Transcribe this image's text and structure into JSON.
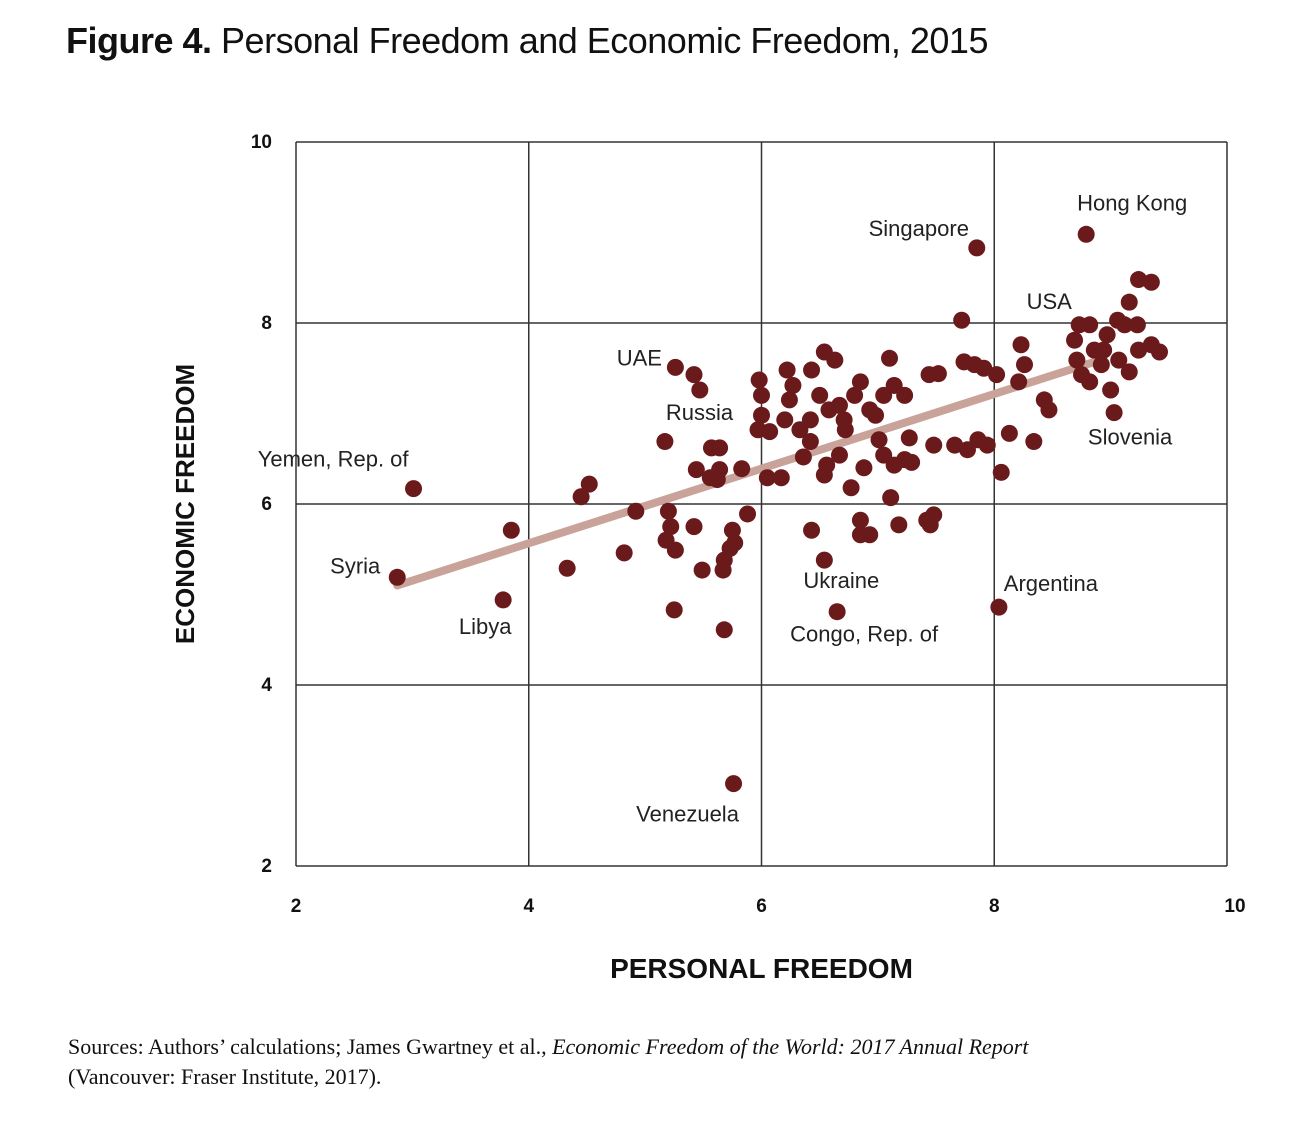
{
  "title": {
    "label": "Figure 4.",
    "text": "Personal Freedom and Economic Freedom, 2015"
  },
  "source": {
    "prefix": "Sources: Authors’ calculations; James Gwartney et al., ",
    "italic": "Economic Freedom of the World: 2017 Annual Report",
    "suffix": "(Vancouver: Fraser Institute, 2017)."
  },
  "chart_data": {
    "type": "scatter",
    "xlabel": "PERSONAL FREEDOM",
    "ylabel": "ECONOMIC FREEDOM",
    "xlim": [
      2,
      10
    ],
    "ylim": [
      2,
      10
    ],
    "xticks": [
      "2",
      "4",
      "6",
      "8",
      "10"
    ],
    "yticks": [
      "2",
      "4",
      "6",
      "8",
      "10"
    ],
    "grid": true,
    "colors": {
      "point": "#6b1a1c",
      "trend": "#c9a29a",
      "grid": "#333333"
    },
    "trendline": [
      [
        2.87,
        5.1
      ],
      [
        8.86,
        7.57
      ]
    ],
    "annotations": [
      {
        "text": "Syria",
        "x": 2.87,
        "y": 5.19
      },
      {
        "text": "Yemen, Rep. of",
        "x": 3.01,
        "y": 6.17
      },
      {
        "text": "Libya",
        "x": 3.78,
        "y": 4.94
      },
      {
        "text": "UAE",
        "x": 5.26,
        "y": 7.51
      },
      {
        "text": "Russia",
        "x": 5.57,
        "y": 6.62
      },
      {
        "text": "Venezuela",
        "x": 5.76,
        "y": 2.91
      },
      {
        "text": "Ukraine",
        "x": 6.54,
        "y": 5.38
      },
      {
        "text": "Congo, Rep. of",
        "x": 6.65,
        "y": 4.81
      },
      {
        "text": "Singapore",
        "x": 7.85,
        "y": 8.83
      },
      {
        "text": "Argentina",
        "x": 8.04,
        "y": 4.86
      },
      {
        "text": "USA",
        "x": 8.73,
        "y": 7.98
      },
      {
        "text": "Hong Kong",
        "x": 8.79,
        "y": 8.98
      },
      {
        "text": "Slovenia",
        "x": 9.03,
        "y": 7.01
      }
    ],
    "points": [
      [
        2.87,
        5.19
      ],
      [
        3.01,
        6.17
      ],
      [
        3.78,
        4.94
      ],
      [
        3.85,
        5.71
      ],
      [
        4.33,
        5.29
      ],
      [
        4.45,
        6.08
      ],
      [
        4.52,
        6.22
      ],
      [
        4.82,
        5.46
      ],
      [
        4.92,
        5.92
      ],
      [
        5.17,
        6.69
      ],
      [
        5.26,
        7.51
      ],
      [
        5.42,
        7.43
      ],
      [
        5.47,
        7.26
      ],
      [
        5.25,
        4.83
      ],
      [
        5.2,
        5.92
      ],
      [
        5.22,
        5.75
      ],
      [
        5.18,
        5.6
      ],
      [
        5.26,
        5.49
      ],
      [
        5.42,
        5.75
      ],
      [
        5.49,
        5.27
      ],
      [
        5.44,
        6.38
      ],
      [
        5.57,
        6.62
      ],
      [
        5.64,
        6.62
      ],
      [
        5.56,
        6.29
      ],
      [
        5.64,
        6.38
      ],
      [
        5.62,
        6.27
      ],
      [
        5.68,
        4.61
      ],
      [
        5.68,
        5.38
      ],
      [
        5.73,
        5.51
      ],
      [
        5.75,
        5.71
      ],
      [
        5.77,
        5.57
      ],
      [
        5.67,
        5.27
      ],
      [
        5.83,
        6.39
      ],
      [
        5.88,
        5.89
      ],
      [
        5.76,
        2.91
      ],
      [
        5.98,
        7.37
      ],
      [
        6.0,
        7.2
      ],
      [
        6.0,
        6.98
      ],
      [
        5.97,
        6.82
      ],
      [
        6.07,
        6.8
      ],
      [
        6.05,
        6.29
      ],
      [
        6.17,
        6.29
      ],
      [
        6.2,
        6.93
      ],
      [
        6.24,
        7.15
      ],
      [
        6.22,
        7.48
      ],
      [
        6.27,
        7.31
      ],
      [
        6.33,
        6.82
      ],
      [
        6.42,
        6.93
      ],
      [
        6.42,
        6.69
      ],
      [
        6.36,
        6.52
      ],
      [
        6.43,
        7.48
      ],
      [
        6.54,
        7.68
      ],
      [
        6.63,
        7.59
      ],
      [
        6.5,
        7.2
      ],
      [
        6.58,
        7.04
      ],
      [
        6.67,
        7.09
      ],
      [
        6.71,
        6.93
      ],
      [
        6.54,
        6.32
      ],
      [
        6.56,
        6.43
      ],
      [
        6.67,
        6.54
      ],
      [
        6.72,
        6.82
      ],
      [
        6.77,
        6.18
      ],
      [
        6.85,
        7.35
      ],
      [
        6.8,
        7.2
      ],
      [
        6.93,
        7.04
      ],
      [
        6.98,
        6.98
      ],
      [
        7.05,
        7.2
      ],
      [
        7.1,
        7.61
      ],
      [
        7.14,
        7.31
      ],
      [
        7.23,
        7.2
      ],
      [
        7.01,
        6.71
      ],
      [
        7.05,
        6.54
      ],
      [
        7.14,
        6.43
      ],
      [
        7.23,
        6.49
      ],
      [
        7.29,
        6.46
      ],
      [
        7.27,
        6.73
      ],
      [
        7.11,
        6.07
      ],
      [
        6.88,
        6.4
      ],
      [
        6.85,
        5.82
      ],
      [
        6.85,
        5.66
      ],
      [
        6.93,
        5.66
      ],
      [
        7.18,
        5.77
      ],
      [
        7.42,
        5.82
      ],
      [
        7.48,
        5.88
      ],
      [
        7.45,
        5.77
      ],
      [
        7.44,
        7.43
      ],
      [
        7.52,
        7.44
      ],
      [
        7.48,
        6.65
      ],
      [
        7.66,
        6.65
      ],
      [
        7.72,
        8.03
      ],
      [
        7.74,
        7.57
      ],
      [
        7.83,
        7.54
      ],
      [
        7.91,
        7.5
      ],
      [
        8.02,
        7.43
      ],
      [
        7.77,
        6.6
      ],
      [
        7.86,
        6.71
      ],
      [
        7.94,
        6.65
      ],
      [
        8.06,
        6.35
      ],
      [
        8.13,
        6.78
      ],
      [
        8.23,
        7.76
      ],
      [
        8.26,
        7.54
      ],
      [
        8.21,
        7.35
      ],
      [
        8.34,
        6.69
      ],
      [
        8.43,
        7.15
      ],
      [
        8.47,
        7.04
      ],
      [
        7.85,
        8.83
      ],
      [
        8.79,
        8.98
      ],
      [
        8.04,
        4.86
      ],
      [
        6.65,
        4.81
      ],
      [
        6.54,
        5.38
      ],
      [
        6.43,
        5.71
      ],
      [
        8.69,
        7.81
      ],
      [
        8.73,
        7.98
      ],
      [
        8.82,
        7.98
      ],
      [
        8.71,
        7.59
      ],
      [
        8.75,
        7.43
      ],
      [
        8.82,
        7.35
      ],
      [
        8.86,
        7.7
      ],
      [
        8.92,
        7.54
      ],
      [
        8.97,
        7.87
      ],
      [
        9.06,
        8.03
      ],
      [
        9.12,
        7.98
      ],
      [
        9.16,
        8.23
      ],
      [
        9.23,
        7.98
      ],
      [
        9.24,
        8.48
      ],
      [
        9.35,
        8.45
      ],
      [
        8.94,
        7.7
      ],
      [
        9.0,
        7.26
      ],
      [
        9.03,
        7.01
      ],
      [
        9.16,
        7.46
      ],
      [
        9.24,
        7.7
      ],
      [
        9.35,
        7.76
      ],
      [
        9.42,
        7.68
      ],
      [
        9.07,
        7.59
      ]
    ]
  }
}
